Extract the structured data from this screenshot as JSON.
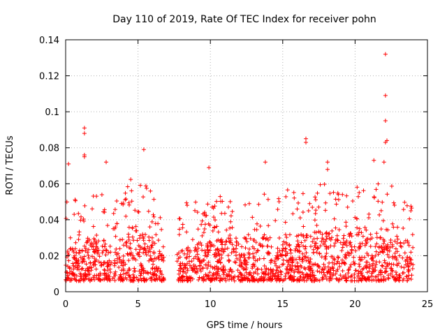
{
  "chart_data": {
    "type": "scatter",
    "title": "Day 110 of 2019, Rate Of TEC Index for receiver pohn",
    "xlabel": "GPS time / hours",
    "ylabel": "ROTI / TECUs",
    "xlim": [
      0,
      25
    ],
    "ylim": [
      0,
      0.14
    ],
    "x_ticks": [
      0,
      5,
      10,
      15,
      20,
      25
    ],
    "y_ticks": [
      0,
      0.02,
      0.04,
      0.06,
      0.08,
      0.1,
      0.12,
      0.14
    ],
    "x_tick_labels": [
      "0",
      "5",
      "10",
      "15",
      "20",
      "25"
    ],
    "y_tick_labels": [
      "0",
      "0.02",
      "0.04",
      "0.06",
      "0.08",
      "0.1",
      "0.12",
      "0.14"
    ],
    "grid": true,
    "marker": "plus",
    "color": "#ff0000",
    "data_gap_hours": [
      [
        6.8,
        7.7
      ]
    ],
    "density_profile": [
      [
        0.0,
        0.025
      ],
      [
        1.0,
        0.03
      ],
      [
        2.0,
        0.03
      ],
      [
        3.0,
        0.028
      ],
      [
        4.0,
        0.035
      ],
      [
        5.0,
        0.038
      ],
      [
        6.0,
        0.03
      ],
      [
        6.6,
        0.022
      ],
      [
        7.8,
        0.022
      ],
      [
        9.0,
        0.028
      ],
      [
        10.0,
        0.028
      ],
      [
        11.0,
        0.03
      ],
      [
        12.0,
        0.03
      ],
      [
        13.0,
        0.03
      ],
      [
        14.0,
        0.03
      ],
      [
        15.0,
        0.032
      ],
      [
        16.0,
        0.032
      ],
      [
        17.0,
        0.033
      ],
      [
        18.0,
        0.035
      ],
      [
        19.0,
        0.033
      ],
      [
        20.0,
        0.033
      ],
      [
        21.0,
        0.035
      ],
      [
        22.0,
        0.036
      ],
      [
        23.0,
        0.03
      ],
      [
        24.0,
        0.028
      ]
    ],
    "notable_points": [
      {
        "x": 0.2,
        "y": 0.071
      },
      {
        "x": 1.3,
        "y": 0.091
      },
      {
        "x": 1.3,
        "y": 0.088
      },
      {
        "x": 1.3,
        "y": 0.076
      },
      {
        "x": 1.3,
        "y": 0.075
      },
      {
        "x": 2.8,
        "y": 0.072
      },
      {
        "x": 5.4,
        "y": 0.079
      },
      {
        "x": 9.9,
        "y": 0.069
      },
      {
        "x": 13.8,
        "y": 0.072
      },
      {
        "x": 16.6,
        "y": 0.085
      },
      {
        "x": 16.6,
        "y": 0.083
      },
      {
        "x": 18.1,
        "y": 0.072
      },
      {
        "x": 18.1,
        "y": 0.068
      },
      {
        "x": 21.3,
        "y": 0.073
      },
      {
        "x": 22.1,
        "y": 0.132
      },
      {
        "x": 22.1,
        "y": 0.109
      },
      {
        "x": 22.1,
        "y": 0.095
      },
      {
        "x": 22.2,
        "y": 0.084
      },
      {
        "x": 22.1,
        "y": 0.083
      },
      {
        "x": 22.0,
        "y": 0.072
      }
    ]
  }
}
